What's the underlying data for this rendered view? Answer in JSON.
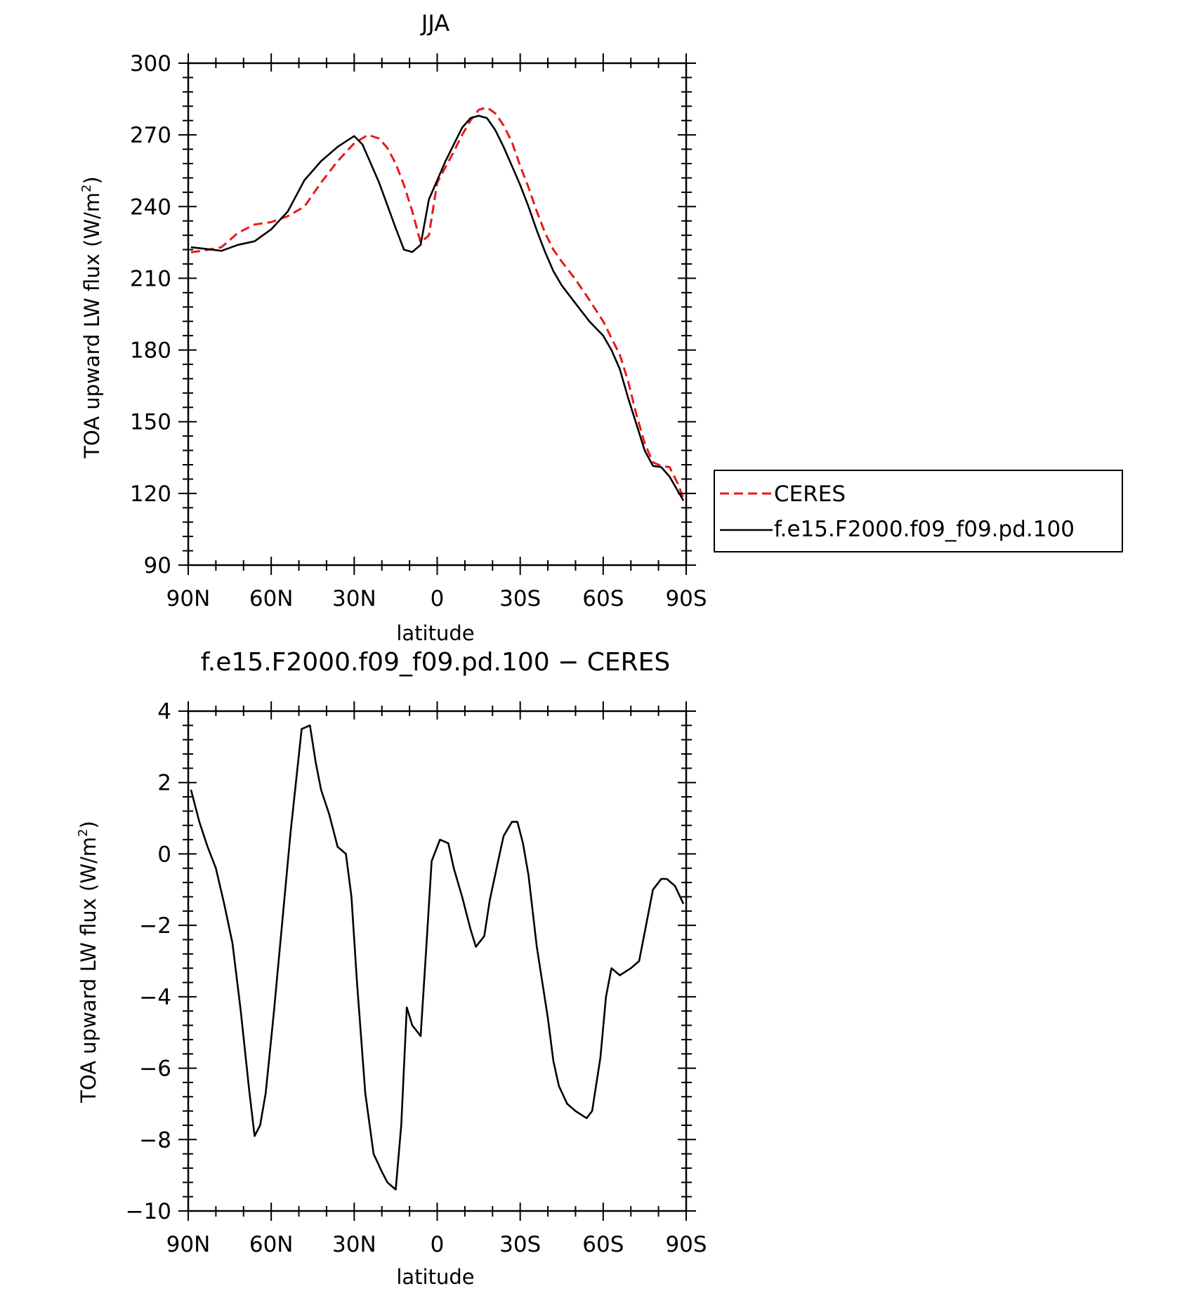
{
  "chart_data": [
    {
      "type": "line",
      "title": "JJA",
      "xlabel": "latitude",
      "ylabel": "TOA upward LW flux (W/m²)",
      "ylabel_main": "TOA upward LW flux (W/m",
      "ylabel_sup": "2",
      "ylabel_close": ")",
      "xlim": [
        -90,
        90
      ],
      "ylim": [
        90,
        300
      ],
      "x_ticks": [
        -90,
        -60,
        -30,
        0,
        30,
        60,
        90
      ],
      "x_tick_labels": [
        "90N",
        "60N",
        "30N",
        "0",
        "30S",
        "60S",
        "90S"
      ],
      "y_ticks": [
        90,
        120,
        150,
        180,
        210,
        240,
        270,
        300
      ],
      "y_tick_labels": [
        "90",
        "120",
        "150",
        "180",
        "210",
        "240",
        "270",
        "300"
      ],
      "legend_position": "right",
      "series": [
        {
          "name": "CERES",
          "color": "#e8191a",
          "dash": "dashed",
          "x": [
            -89,
            -85,
            -78,
            -72,
            -66,
            -60,
            -54,
            -48,
            -42,
            -36,
            -30,
            -25,
            -21,
            -18,
            -15,
            -12,
            -9,
            -6,
            -3,
            0,
            3,
            6,
            9,
            12,
            15,
            18,
            21,
            24,
            27,
            30,
            33,
            36,
            39,
            42,
            45,
            50,
            55,
            60,
            63,
            66,
            69,
            72,
            75,
            78,
            81,
            84,
            87,
            89
          ],
          "values": [
            220.9,
            221.5,
            223,
            229,
            232.5,
            233.5,
            236,
            240,
            250,
            259,
            266.5,
            270,
            268.5,
            264.5,
            258,
            249,
            238,
            225,
            228,
            250,
            256.5,
            263,
            270,
            276,
            280.5,
            281.5,
            279,
            274,
            267,
            257,
            248,
            238,
            229,
            222,
            217,
            209.5,
            201,
            192,
            185,
            178,
            167,
            153,
            141,
            133,
            131.5,
            131,
            124,
            118
          ]
        },
        {
          "name": "f.e15.F2000.f09_f09.pd.100",
          "color": "#000000",
          "dash": "solid",
          "x": [
            -89,
            -85,
            -78,
            -72,
            -66,
            -60,
            -54,
            -48,
            -42,
            -36,
            -30,
            -27,
            -24,
            -21,
            -18,
            -15,
            -12,
            -9,
            -6,
            -3,
            0,
            3,
            6,
            9,
            12,
            15,
            18,
            21,
            24,
            27,
            30,
            33,
            36,
            39,
            42,
            45,
            50,
            55,
            60,
            63,
            66,
            69,
            72,
            75,
            78,
            81,
            84,
            87,
            89
          ],
          "values": [
            223,
            222.5,
            221.5,
            224,
            225.5,
            230.5,
            238,
            251,
            259,
            265,
            269.5,
            266,
            258,
            250,
            240.5,
            231,
            222,
            221,
            224,
            243,
            251,
            259,
            266,
            273,
            277,
            278,
            277,
            272,
            265,
            257,
            249,
            240,
            230,
            221,
            213,
            207,
            199.5,
            192,
            186,
            180,
            172,
            160,
            149,
            138,
            131.5,
            131,
            127,
            121,
            117
          ]
        }
      ]
    },
    {
      "type": "line",
      "title": "f.e15.F2000.f09_f09.pd.100 − CERES",
      "xlabel": "latitude",
      "ylabel": "TOA upward LW flux (W/m²)",
      "ylabel_main": "TOA upward LW flux (W/m",
      "ylabel_sup": "2",
      "ylabel_close": ")",
      "xlim": [
        -90,
        90
      ],
      "ylim": [
        -10,
        4
      ],
      "x_ticks": [
        -90,
        -60,
        -30,
        0,
        30,
        60,
        90
      ],
      "x_tick_labels": [
        "90N",
        "60N",
        "30N",
        "0",
        "30S",
        "60S",
        "90S"
      ],
      "y_ticks": [
        -10,
        -8,
        -6,
        -4,
        -2,
        0,
        2,
        4
      ],
      "y_tick_labels": [
        "−10",
        "−8",
        "−6",
        "−4",
        "−2",
        "0",
        "2",
        "4"
      ],
      "series": [
        {
          "color": "#000000",
          "dash": "solid",
          "x": [
            -89,
            -86,
            -83,
            -80,
            -77,
            -74,
            -71,
            -68,
            -66,
            -64,
            -62,
            -59,
            -56,
            -53,
            -49,
            -46,
            -44,
            -42,
            -39,
            -36,
            -33,
            -31,
            -29,
            -26,
            -23,
            -20,
            -18,
            -15,
            -13,
            -11,
            -9,
            -6,
            -4,
            -2,
            1,
            4,
            6,
            9,
            12,
            14,
            17,
            19,
            22,
            24,
            27,
            29,
            31,
            33,
            36,
            40,
            42,
            44,
            47,
            50,
            54,
            56,
            59,
            61,
            63,
            66,
            70,
            73,
            75,
            78,
            81,
            83,
            86,
            89
          ],
          "values": [
            1.8,
            0.9,
            0.2,
            -0.4,
            -1.4,
            -2.5,
            -4.4,
            -6.6,
            -7.9,
            -7.6,
            -6.7,
            -4.4,
            -1.9,
            0.6,
            3.5,
            3.6,
            2.6,
            1.8,
            1.1,
            0.2,
            0,
            -1.2,
            -3.6,
            -6.7,
            -8.4,
            -8.9,
            -9.2,
            -9.4,
            -7.6,
            -4.3,
            -4.8,
            -5.1,
            -2.7,
            -0.2,
            0.4,
            0.3,
            -0.4,
            -1.2,
            -2.1,
            -2.6,
            -2.3,
            -1.3,
            -0.2,
            0.5,
            0.9,
            0.9,
            0.3,
            -0.6,
            -2.6,
            -4.6,
            -5.8,
            -6.5,
            -7.0,
            -7.2,
            -7.4,
            -7.2,
            -5.7,
            -4.0,
            -3.2,
            -3.4,
            -3.2,
            -3.0,
            -2.2,
            -1.0,
            -0.7,
            -0.7,
            -0.9,
            -1.4
          ]
        }
      ]
    }
  ]
}
